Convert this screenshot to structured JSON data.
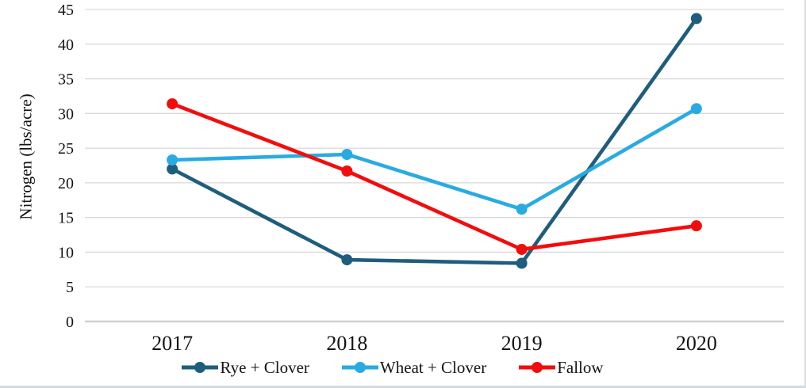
{
  "chart_data": {
    "type": "line",
    "title": "",
    "xlabel": "",
    "ylabel": "Nitrogen (lbs/acre)",
    "categories": [
      "2017",
      "2018",
      "2019",
      "2020"
    ],
    "series": [
      {
        "name": "Rye + Clover",
        "color": "#1F5D7D",
        "values": [
          22.0,
          8.9,
          8.4,
          43.7
        ]
      },
      {
        "name": "Wheat + Clover",
        "color": "#29ABE2",
        "values": [
          23.3,
          24.1,
          16.2,
          30.7
        ]
      },
      {
        "name": "Fallow",
        "color": "#F20D0D",
        "values": [
          31.4,
          21.7,
          10.4,
          13.8
        ]
      }
    ],
    "y_ticks": [
      0,
      5,
      10,
      15,
      20,
      25,
      30,
      35,
      40,
      45
    ],
    "ylim": [
      0,
      45
    ],
    "grid": true,
    "gridline_color": "#D9D9D9",
    "axis_line_color": "#CFCFCF",
    "text_color": "#141414",
    "legend_position": "bottom",
    "marker": "circle"
  }
}
